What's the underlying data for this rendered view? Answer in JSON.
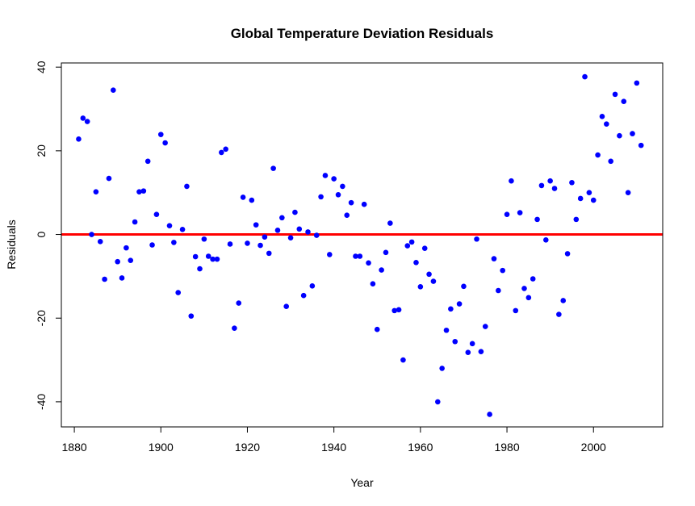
{
  "chart_data": {
    "type": "scatter",
    "title": "Global Temperature Deviation Residuals",
    "xlabel": "Year",
    "ylabel": "Residuals",
    "xlim": [
      1877,
      2016
    ],
    "ylim": [
      -46,
      41
    ],
    "xticks": [
      1880,
      1900,
      1920,
      1940,
      1960,
      1980,
      2000
    ],
    "yticks": [
      -40,
      -20,
      0,
      20,
      40
    ],
    "point_color": "#0000ff",
    "reference_line": {
      "y": 0,
      "color": "#ff0000"
    },
    "grid": false,
    "points": [
      [
        1881,
        22.8
      ],
      [
        1882,
        27.8
      ],
      [
        1883,
        27.0
      ],
      [
        1884,
        0.0
      ],
      [
        1885,
        10.2
      ],
      [
        1886,
        -1.7
      ],
      [
        1887,
        -10.7
      ],
      [
        1888,
        13.4
      ],
      [
        1889,
        34.5
      ],
      [
        1890,
        -6.5
      ],
      [
        1891,
        -10.4
      ],
      [
        1892,
        -3.2
      ],
      [
        1893,
        -6.2
      ],
      [
        1894,
        3.0
      ],
      [
        1895,
        10.2
      ],
      [
        1896,
        10.4
      ],
      [
        1897,
        17.5
      ],
      [
        1898,
        -2.5
      ],
      [
        1899,
        4.8
      ],
      [
        1900,
        23.9
      ],
      [
        1901,
        21.9
      ],
      [
        1902,
        2.1
      ],
      [
        1903,
        -1.9
      ],
      [
        1904,
        -13.9
      ],
      [
        1905,
        1.2
      ],
      [
        1906,
        11.5
      ],
      [
        1907,
        -19.5
      ],
      [
        1908,
        -5.3
      ],
      [
        1909,
        -8.2
      ],
      [
        1910,
        -1.1
      ],
      [
        1911,
        -5.2
      ],
      [
        1912,
        -5.9
      ],
      [
        1913,
        -5.9
      ],
      [
        1914,
        19.6
      ],
      [
        1915,
        20.4
      ],
      [
        1916,
        -2.3
      ],
      [
        1917,
        -22.4
      ],
      [
        1918,
        -16.4
      ],
      [
        1919,
        8.9
      ],
      [
        1920,
        -2.1
      ],
      [
        1921,
        8.2
      ],
      [
        1922,
        2.3
      ],
      [
        1923,
        -2.6
      ],
      [
        1924,
        -0.6
      ],
      [
        1925,
        -4.5
      ],
      [
        1926,
        15.8
      ],
      [
        1927,
        1.0
      ],
      [
        1928,
        4.0
      ],
      [
        1929,
        -17.2
      ],
      [
        1930,
        -0.8
      ],
      [
        1931,
        5.3
      ],
      [
        1932,
        1.3
      ],
      [
        1933,
        -14.6
      ],
      [
        1934,
        0.6
      ],
      [
        1935,
        -12.3
      ],
      [
        1936,
        -0.2
      ],
      [
        1937,
        9.0
      ],
      [
        1938,
        14.1
      ],
      [
        1939,
        -4.8
      ],
      [
        1940,
        13.3
      ],
      [
        1941,
        9.5
      ],
      [
        1942,
        11.5
      ],
      [
        1943,
        4.6
      ],
      [
        1944,
        7.6
      ],
      [
        1945,
        -5.2
      ],
      [
        1946,
        -5.2
      ],
      [
        1947,
        7.2
      ],
      [
        1948,
        -6.8
      ],
      [
        1949,
        -11.8
      ],
      [
        1950,
        -22.7
      ],
      [
        1951,
        -8.5
      ],
      [
        1952,
        -4.3
      ],
      [
        1953,
        2.7
      ],
      [
        1954,
        -18.2
      ],
      [
        1955,
        -18.0
      ],
      [
        1956,
        -30.0
      ],
      [
        1957,
        -2.7
      ],
      [
        1958,
        -1.8
      ],
      [
        1959,
        -6.7
      ],
      [
        1960,
        -12.5
      ],
      [
        1961,
        -3.3
      ],
      [
        1962,
        -9.5
      ],
      [
        1963,
        -11.2
      ],
      [
        1964,
        -40.0
      ],
      [
        1965,
        -32.0
      ],
      [
        1966,
        -22.9
      ],
      [
        1967,
        -17.8
      ],
      [
        1968,
        -25.6
      ],
      [
        1969,
        -16.6
      ],
      [
        1970,
        -12.4
      ],
      [
        1971,
        -28.2
      ],
      [
        1972,
        -26.1
      ],
      [
        1973,
        -1.1
      ],
      [
        1974,
        -28.0
      ],
      [
        1975,
        -22.0
      ],
      [
        1976,
        -43.0
      ],
      [
        1977,
        -5.8
      ],
      [
        1978,
        -13.4
      ],
      [
        1979,
        -8.6
      ],
      [
        1980,
        4.8
      ],
      [
        1981,
        12.8
      ],
      [
        1982,
        -18.2
      ],
      [
        1983,
        5.2
      ],
      [
        1984,
        -12.9
      ],
      [
        1985,
        -15.1
      ],
      [
        1986,
        -10.6
      ],
      [
        1987,
        3.6
      ],
      [
        1988,
        11.7
      ],
      [
        1989,
        -1.3
      ],
      [
        1990,
        12.8
      ],
      [
        1991,
        11.0
      ],
      [
        1992,
        -19.1
      ],
      [
        1993,
        -15.8
      ],
      [
        1994,
        -4.6
      ],
      [
        1995,
        12.4
      ],
      [
        1996,
        3.6
      ],
      [
        1997,
        8.6
      ],
      [
        1998,
        37.7
      ],
      [
        1999,
        10.0
      ],
      [
        2000,
        8.2
      ],
      [
        2001,
        19.0
      ],
      [
        2002,
        28.2
      ],
      [
        2003,
        26.4
      ],
      [
        2004,
        17.5
      ],
      [
        2005,
        33.5
      ],
      [
        2006,
        23.6
      ],
      [
        2007,
        31.8
      ],
      [
        2008,
        10.0
      ],
      [
        2009,
        24.1
      ],
      [
        2010,
        36.2
      ],
      [
        2011,
        21.3
      ]
    ]
  }
}
